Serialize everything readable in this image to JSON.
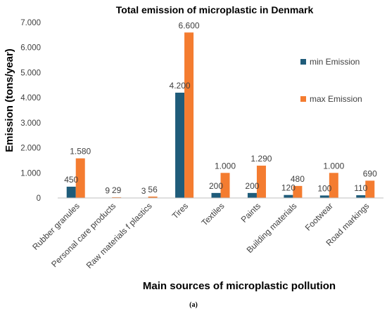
{
  "chart_data": {
    "type": "bar",
    "title": "Total emission of microplastic in Denmark",
    "xlabel": "Main sources of microplastic pollution",
    "ylabel": "Emission (tons/year)",
    "ylim": [
      0,
      7000
    ],
    "yticks": [
      "0",
      "1.000",
      "2.000",
      "3.000",
      "4.000",
      "5.000",
      "6.000",
      "7.000"
    ],
    "grid": false,
    "legend_position": "right",
    "categories": [
      "Rubber granules",
      "Personal care products",
      "Raw materials f plastics",
      "Tires",
      "Textiles",
      "Paints",
      "Building materials",
      "Footwear",
      "Road markings"
    ],
    "series": [
      {
        "name": "min Emission",
        "color": "#1f5c7a",
        "values": [
          450,
          9,
          3,
          4200,
          200,
          200,
          120,
          100,
          110
        ],
        "labels": [
          "450",
          "9",
          "3",
          "4.200",
          "200",
          "200",
          "120",
          "100",
          "110"
        ]
      },
      {
        "name": "max Emission",
        "color": "#f47c30",
        "values": [
          1580,
          29,
          56,
          6600,
          1000,
          1290,
          480,
          1000,
          690
        ],
        "labels": [
          "1.580",
          "29",
          "56",
          "6.600",
          "1.000",
          "1.290",
          "480",
          "1.000",
          "690"
        ]
      }
    ]
  },
  "caption": "(a)"
}
